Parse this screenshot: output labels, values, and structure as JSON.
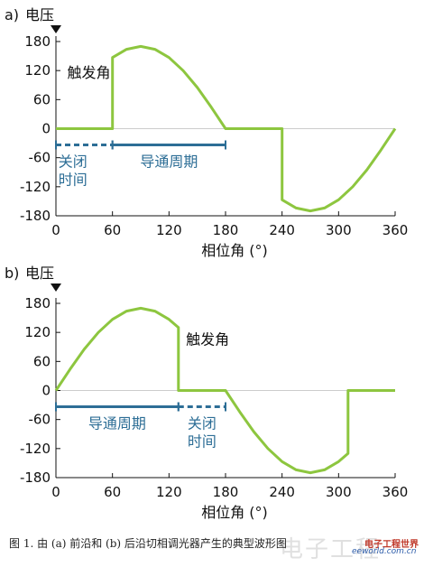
{
  "chart_data": [
    {
      "type": "line",
      "panel_label": "a)",
      "ylabel": "电压",
      "xlabel": "相位角 (°)",
      "xlim": [
        0,
        360
      ],
      "ylim": [
        -180,
        180
      ],
      "x_ticks": [
        0,
        60,
        120,
        180,
        240,
        300,
        360
      ],
      "y_ticks": [
        180,
        120,
        60,
        0,
        -60,
        -120,
        -180
      ],
      "grid": false,
      "zero_line": true,
      "series": [
        {
          "color": "#8dc63f",
          "x": [
            0,
            60,
            60,
            75,
            90,
            105,
            120,
            135,
            150,
            165,
            180,
            240,
            240,
            255,
            270,
            285,
            300,
            315,
            330,
            345,
            360
          ],
          "y": [
            0,
            0,
            147,
            164,
            170,
            164,
            147,
            120,
            85,
            44,
            0,
            0,
            -147,
            -164,
            -170,
            -164,
            -147,
            -120,
            -85,
            -44,
            0
          ]
        }
      ],
      "annotations": [
        {
          "text": "触发角",
          "x": 12,
          "y": 105
        }
      ],
      "intervals": [
        {
          "label_lines": [
            "关闭",
            "时间"
          ],
          "x_start": 0,
          "x_end": 60,
          "style": "dashed",
          "label_x": 18
        },
        {
          "label_lines": [
            "导通周期"
          ],
          "x_start": 60,
          "x_end": 180,
          "style": "solid",
          "label_x": 120
        }
      ]
    },
    {
      "type": "line",
      "panel_label": "b)",
      "ylabel": "电压",
      "xlabel": "相位角 (°)",
      "xlim": [
        0,
        360
      ],
      "ylim": [
        -180,
        180
      ],
      "x_ticks": [
        0,
        60,
        120,
        180,
        240,
        300,
        360
      ],
      "y_ticks": [
        180,
        120,
        60,
        0,
        -60,
        -120,
        -180
      ],
      "grid": false,
      "zero_line": true,
      "series": [
        {
          "color": "#8dc63f",
          "x": [
            0,
            15,
            30,
            45,
            60,
            75,
            90,
            105,
            120,
            130,
            130,
            180,
            195,
            210,
            225,
            240,
            255,
            270,
            285,
            300,
            310,
            310,
            360
          ],
          "y": [
            0,
            44,
            85,
            120,
            147,
            164,
            170,
            164,
            147,
            130,
            0,
            0,
            -44,
            -85,
            -120,
            -147,
            -164,
            -170,
            -164,
            -147,
            -130,
            0,
            0
          ]
        }
      ],
      "annotations": [
        {
          "text": "触发角",
          "x": 138,
          "y": 95
        }
      ],
      "intervals": [
        {
          "label_lines": [
            "导通周期"
          ],
          "x_start": 0,
          "x_end": 130,
          "style": "solid",
          "label_x": 65
        },
        {
          "label_lines": [
            "关闭",
            "时间"
          ],
          "x_start": 130,
          "x_end": 180,
          "style": "dashed",
          "label_x": 155
        }
      ]
    }
  ],
  "colors": {
    "waveform": "#8dc63f",
    "interval": "#2d6e96",
    "axis": "#111111",
    "zero_line": "#cccccc"
  },
  "caption": "图 1. 由 (a) 前沿和 (b) 后沿切相调光器产生的典型波形图",
  "watermark": {
    "big_text": "电子工程",
    "site": "eeworld.com.cn",
    "name": "电子工程世界"
  }
}
